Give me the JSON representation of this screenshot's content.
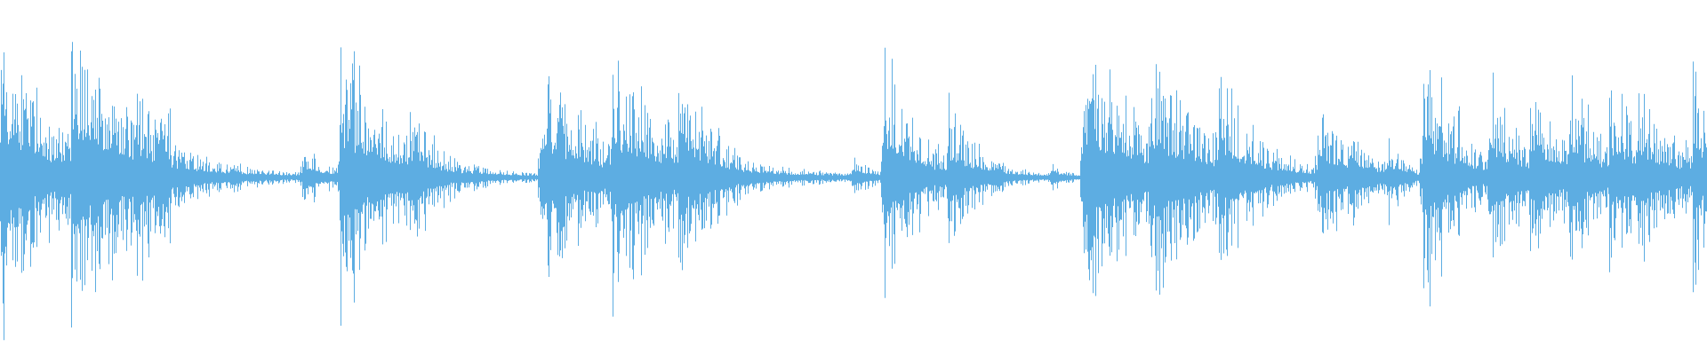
{
  "waveform": {
    "color": "#5dade2",
    "background": "#ffffff",
    "icon": "audio-waveform"
  }
}
